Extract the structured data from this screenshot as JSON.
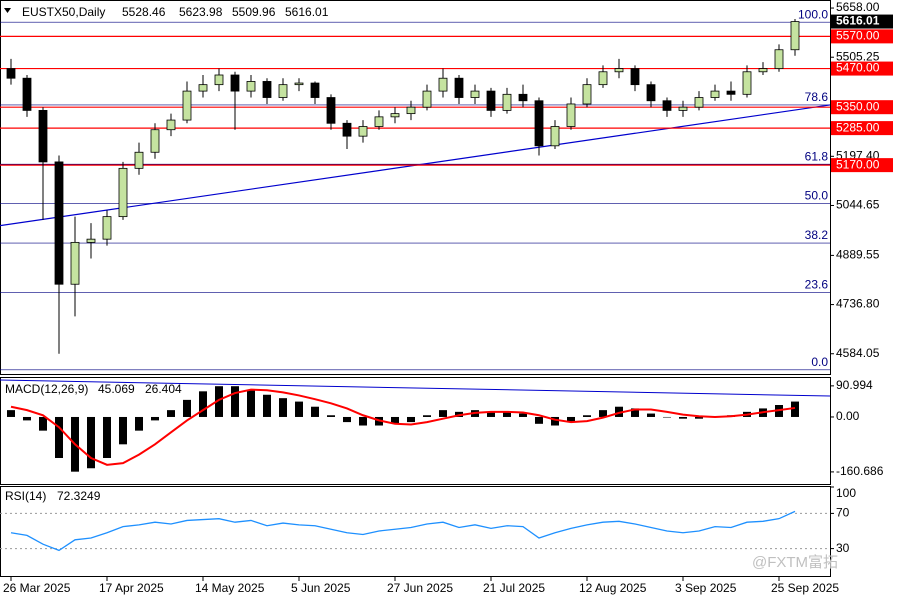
{
  "chart_data": [
    {
      "type": "candlestick",
      "title": "EUSTX50,Daily",
      "categories": [
        "26 Mar 2025",
        null,
        null,
        null,
        null,
        null,
        "17 Apr 2025",
        null,
        null,
        null,
        null,
        null,
        "14 May 2025",
        null,
        null,
        null,
        null,
        null,
        "5 Jun 2025",
        null,
        null,
        null,
        null,
        null,
        "27 Jun 2025",
        null,
        null,
        null,
        null,
        null,
        "21 Jul 2025",
        null,
        null,
        null,
        null,
        null,
        "12 Aug 2025",
        null,
        null,
        null,
        null,
        null,
        "3 Sep 2025",
        null,
        null,
        null,
        null,
        null,
        "25 Sep 2025",
        null
      ],
      "open": [
        5470,
        5440,
        5340,
        5180,
        4800,
        4930,
        4940,
        5010,
        5160,
        5210,
        5280,
        5310,
        5400,
        5420,
        5450,
        5400,
        5430,
        5380,
        5420,
        5425,
        5380,
        5300,
        5260,
        5290,
        5320,
        5330,
        5350,
        5400,
        5440,
        5380,
        5400,
        5340,
        5390,
        5370,
        5230,
        5290,
        5360,
        5420,
        5460,
        5470,
        5420,
        5370,
        5340,
        5350,
        5380,
        5400,
        5390,
        5460,
        5470,
        5528.46
      ],
      "high": [
        5500,
        5450,
        5350,
        5200,
        5010,
        4990,
        5030,
        5180,
        5240,
        5300,
        5330,
        5430,
        5450,
        5470,
        5460,
        5450,
        5440,
        5440,
        5440,
        5430,
        5390,
        5310,
        5310,
        5340,
        5350,
        5370,
        5420,
        5470,
        5450,
        5420,
        5410,
        5410,
        5420,
        5380,
        5310,
        5380,
        5440,
        5480,
        5500,
        5480,
        5430,
        5380,
        5370,
        5400,
        5420,
        5430,
        5480,
        5490,
        5545,
        5623.98
      ],
      "low": [
        5420,
        5320,
        5000,
        4584,
        4700,
        4880,
        4920,
        5000,
        5140,
        5190,
        5260,
        5300,
        5380,
        5400,
        5280,
        5380,
        5360,
        5370,
        5400,
        5360,
        5280,
        5220,
        5240,
        5280,
        5300,
        5310,
        5340,
        5380,
        5360,
        5360,
        5320,
        5330,
        5350,
        5200,
        5220,
        5280,
        5350,
        5410,
        5440,
        5400,
        5350,
        5320,
        5320,
        5340,
        5370,
        5370,
        5380,
        5450,
        5460,
        5509.96
      ],
      "close": [
        5440,
        5340,
        5180,
        4800,
        4930,
        4940,
        5010,
        5160,
        5210,
        5280,
        5310,
        5400,
        5420,
        5450,
        5400,
        5430,
        5380,
        5420,
        5425,
        5380,
        5300,
        5260,
        5290,
        5320,
        5330,
        5350,
        5400,
        5440,
        5380,
        5400,
        5340,
        5390,
        5370,
        5230,
        5290,
        5360,
        5420,
        5460,
        5470,
        5420,
        5370,
        5340,
        5350,
        5380,
        5400,
        5390,
        5460,
        5470,
        5528.46,
        5616.01
      ],
      "up_color": "#c5e3a0",
      "down_color": "#000000",
      "ylim": [
        4518,
        5683
      ],
      "yticks": [
        {
          "value": 5658,
          "label": "5658.00"
        },
        {
          "value": 5505.25,
          "label": "5505.25"
        },
        {
          "value": 5197.4,
          "label": "5197.40"
        },
        {
          "value": 5044.65,
          "label": "5044.65"
        },
        {
          "value": 4889.55,
          "label": "4889.55"
        },
        {
          "value": 4736.8,
          "label": "4736.80"
        },
        {
          "value": 4584.05,
          "label": "4584.05"
        }
      ],
      "levels": [
        {
          "value": 5570,
          "label": "5570.00"
        },
        {
          "value": 5470,
          "label": "5470.00"
        },
        {
          "value": 5350,
          "label": "5350.00"
        },
        {
          "value": 5285,
          "label": "5285.00"
        },
        {
          "value": 5170,
          "label": "5170.00"
        }
      ],
      "level_color": "#ff0000",
      "fib_levels": [
        {
          "value": 5614,
          "label": "100.0"
        },
        {
          "value": 5357,
          "label": "78.6"
        },
        {
          "value": 5173,
          "label": "61.8"
        },
        {
          "value": 5051,
          "label": "50.0"
        },
        {
          "value": 4928,
          "label": "38.2"
        },
        {
          "value": 4775,
          "label": "23.6"
        },
        {
          "value": 4534,
          "label": "0.0"
        }
      ],
      "fib_color": "#000080",
      "trendline": {
        "start": 4982,
        "end": 5357,
        "color": "#0000cd"
      },
      "watermark": "@FXTM富拓"
    },
    {
      "type": "macd",
      "title": "MACD(12,26,9)",
      "histogram": [
        20,
        -10,
        -40,
        -120,
        -160,
        -150,
        -120,
        -80,
        -40,
        -10,
        20,
        50,
        75,
        90,
        90,
        80,
        65,
        55,
        45,
        30,
        5,
        -15,
        -25,
        -25,
        -20,
        -15,
        5,
        20,
        15,
        20,
        15,
        15,
        10,
        -20,
        -25,
        -15,
        5,
        20,
        30,
        25,
        10,
        0,
        -5,
        -5,
        0,
        5,
        15,
        25,
        35,
        45.069
      ],
      "signal": [
        30,
        20,
        5,
        -30,
        -80,
        -120,
        -140,
        -135,
        -110,
        -80,
        -45,
        -10,
        20,
        50,
        70,
        80,
        78,
        72,
        63,
        52,
        40,
        25,
        5,
        -10,
        -20,
        -22,
        -15,
        -5,
        5,
        12,
        15,
        15,
        13,
        5,
        -8,
        -15,
        -12,
        -2,
        12,
        22,
        22,
        15,
        7,
        2,
        0,
        2,
        7,
        14,
        20,
        26.404
      ],
      "histogram_color": "#000000",
      "signal_color": "#ff0000",
      "ylim": [
        -199,
        114
      ],
      "yticks": [
        90.994,
        {
          "value": 0,
          "label": "0.00"
        },
        -160.686
      ]
    },
    {
      "type": "line",
      "title": "RSI(14)",
      "values": [
        48,
        45,
        35,
        28,
        40,
        42,
        48,
        55,
        57,
        60,
        58,
        62,
        63,
        64,
        60,
        62,
        56,
        59,
        57,
        56,
        52,
        48,
        46,
        50,
        52,
        54,
        58,
        60,
        54,
        57,
        53,
        56,
        55,
        42,
        48,
        53,
        57,
        60,
        61,
        58,
        54,
        50,
        48,
        50,
        55,
        54,
        60,
        61,
        64,
        72.3249
      ],
      "color": "#1e90ff",
      "ylim": [
        0,
        100
      ],
      "yticks": [
        100,
        70,
        30
      ],
      "levels": [
        70,
        30
      ]
    }
  ]
}
